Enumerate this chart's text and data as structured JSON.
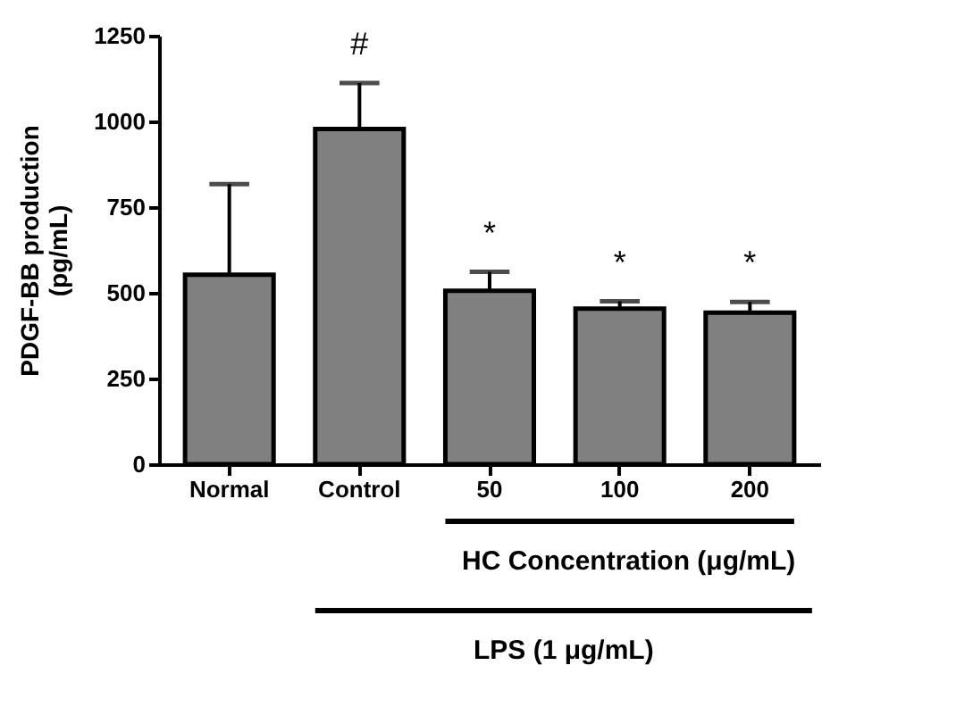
{
  "chart_data": {
    "type": "bar",
    "categories": [
      "Normal",
      "Control",
      "50",
      "100",
      "200"
    ],
    "values": [
      553,
      978,
      506,
      454,
      442
    ],
    "errors": [
      [
        553,
        817
      ],
      [
        978,
        1112
      ],
      [
        506,
        561
      ],
      [
        454,
        475
      ],
      [
        442,
        473
      ]
    ],
    "color": "#808080",
    "ylabel": "PDGF-BB  production\n(pg/mL)",
    "xlabel": "HC Concentration (μg/mL)",
    "ylim": [
      0,
      1250
    ],
    "yticks": [
      0,
      250,
      500,
      750,
      1000,
      1250
    ],
    "annotations": [
      "#",
      "*",
      "*",
      "*",
      "LPS (1 μg/mL)"
    ],
    "grid": false
  }
}
